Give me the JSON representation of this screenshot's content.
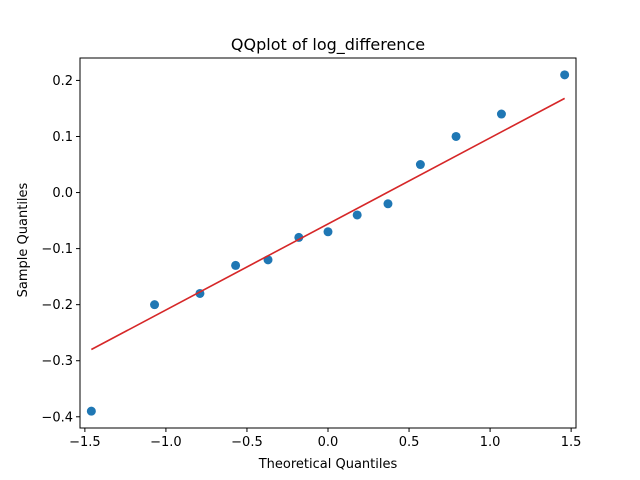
{
  "chart_data": {
    "type": "scatter",
    "title": "QQplot of log_difference",
    "xlabel": "Theoretical Quantiles",
    "ylabel": "Sample Quantiles",
    "xlim": [
      -1.53,
      1.53
    ],
    "ylim": [
      -0.42,
      0.24
    ],
    "grid": false,
    "x_ticks": [
      -1.5,
      -1.0,
      -0.5,
      0.0,
      0.5,
      1.0,
      1.5
    ],
    "x_tick_labels": [
      "−1.5",
      "−1.0",
      "−0.5",
      "0.0",
      "0.5",
      "1.0",
      "1.5"
    ],
    "y_ticks": [
      -0.4,
      -0.3,
      -0.2,
      -0.1,
      0.0,
      0.1,
      0.2
    ],
    "y_tick_labels": [
      "−0.4",
      "−0.3",
      "−0.2",
      "−0.1",
      "0.0",
      "0.1",
      "0.2"
    ],
    "points": {
      "x": [
        -1.46,
        -1.07,
        -0.79,
        -0.57,
        -0.37,
        -0.18,
        0.0,
        0.18,
        0.37,
        0.57,
        0.79,
        1.07,
        1.46
      ],
      "y": [
        -0.39,
        -0.2,
        -0.18,
        -0.13,
        -0.12,
        -0.08,
        -0.07,
        -0.04,
        -0.02,
        0.05,
        0.1,
        0.14,
        0.21
      ],
      "color": "#1f77b4"
    },
    "reference_line": {
      "x": [
        -1.46,
        1.46
      ],
      "y": [
        -0.28,
        0.168
      ],
      "color": "#d62728"
    }
  }
}
